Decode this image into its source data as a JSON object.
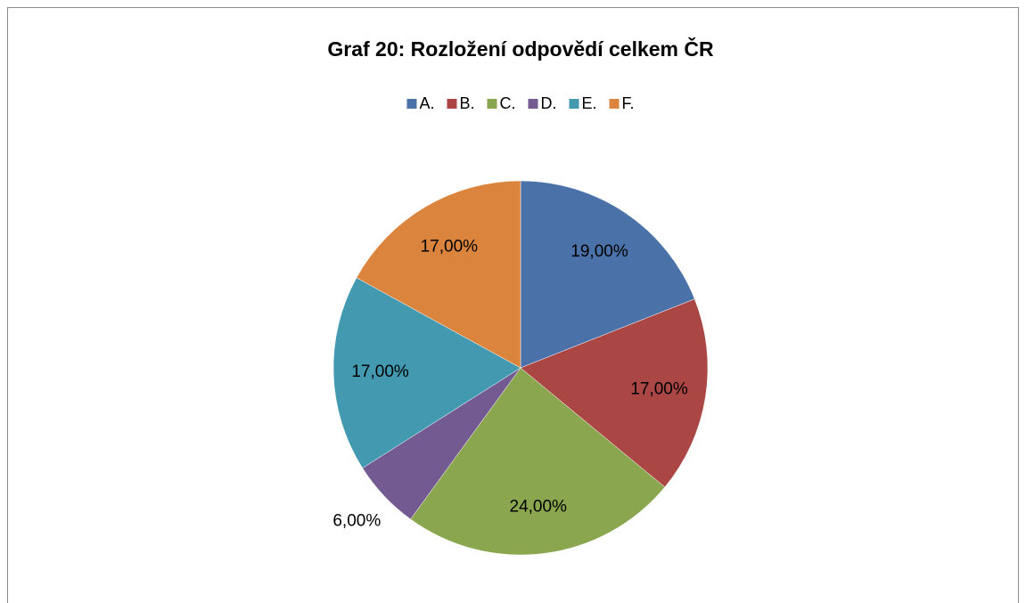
{
  "chart_data": {
    "type": "pie",
    "title": "Graf 20: Rozložení odpovědí celkem ČR",
    "categories": [
      "A.",
      "B.",
      "C.",
      "D.",
      "E.",
      "F."
    ],
    "values": [
      19,
      17,
      24,
      6,
      17,
      17
    ],
    "value_labels": [
      "19,00%",
      "17,00%",
      "24,00%",
      "6,00%",
      "17,00%",
      "17,00%"
    ],
    "colors": [
      "#4a72a8",
      "#aa4644",
      "#8aa64e",
      "#735a91",
      "#4299b0",
      "#db843d"
    ],
    "legend": "top"
  }
}
